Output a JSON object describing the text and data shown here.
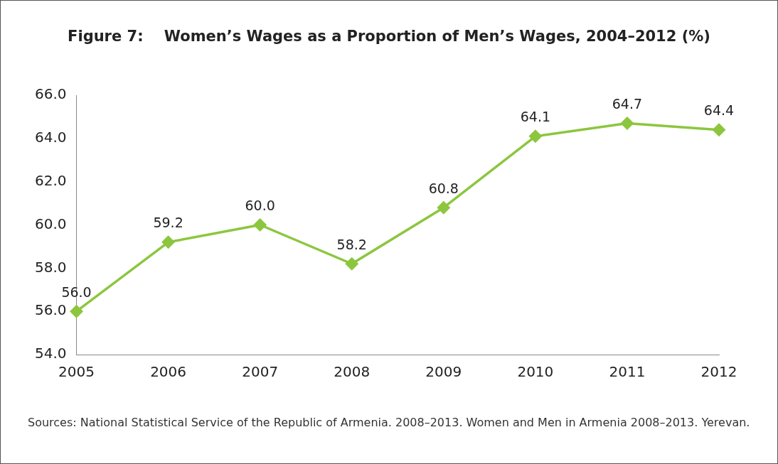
{
  "chart_data": {
    "type": "line",
    "title": "Figure 7:    Women’s Wages as a Proportion of Men’s Wages, 2004–2012 (%)",
    "categories": [
      "2005",
      "2006",
      "2007",
      "2008",
      "2009",
      "2010",
      "2011",
      "2012"
    ],
    "values": [
      56.0,
      59.2,
      60.0,
      58.2,
      60.8,
      64.1,
      64.7,
      64.4
    ],
    "value_labels": [
      "56.0",
      "59.2",
      "60.0",
      "58.2",
      "60.8",
      "64.1",
      "64.7",
      "64.4"
    ],
    "color": "#8cc63e",
    "marker": "diamond",
    "line_style": "solid",
    "grid": false,
    "legend": false,
    "ylim": [
      54,
      66
    ],
    "yticks": [
      {
        "value": 54,
        "label": "54.0"
      },
      {
        "value": 56,
        "label": "56.0"
      },
      {
        "value": 58,
        "label": "58.0"
      },
      {
        "value": 60,
        "label": "60.0"
      },
      {
        "value": 62,
        "label": "62.0"
      },
      {
        "value": 64,
        "label": "64.0"
      },
      {
        "value": 66,
        "label": "66.0"
      }
    ],
    "annotations": [
      "Sources: National Statistical Service of the Republic of Armenia. 2008–2013. Women and Men in Armenia 2008–2013. Yerevan."
    ]
  }
}
